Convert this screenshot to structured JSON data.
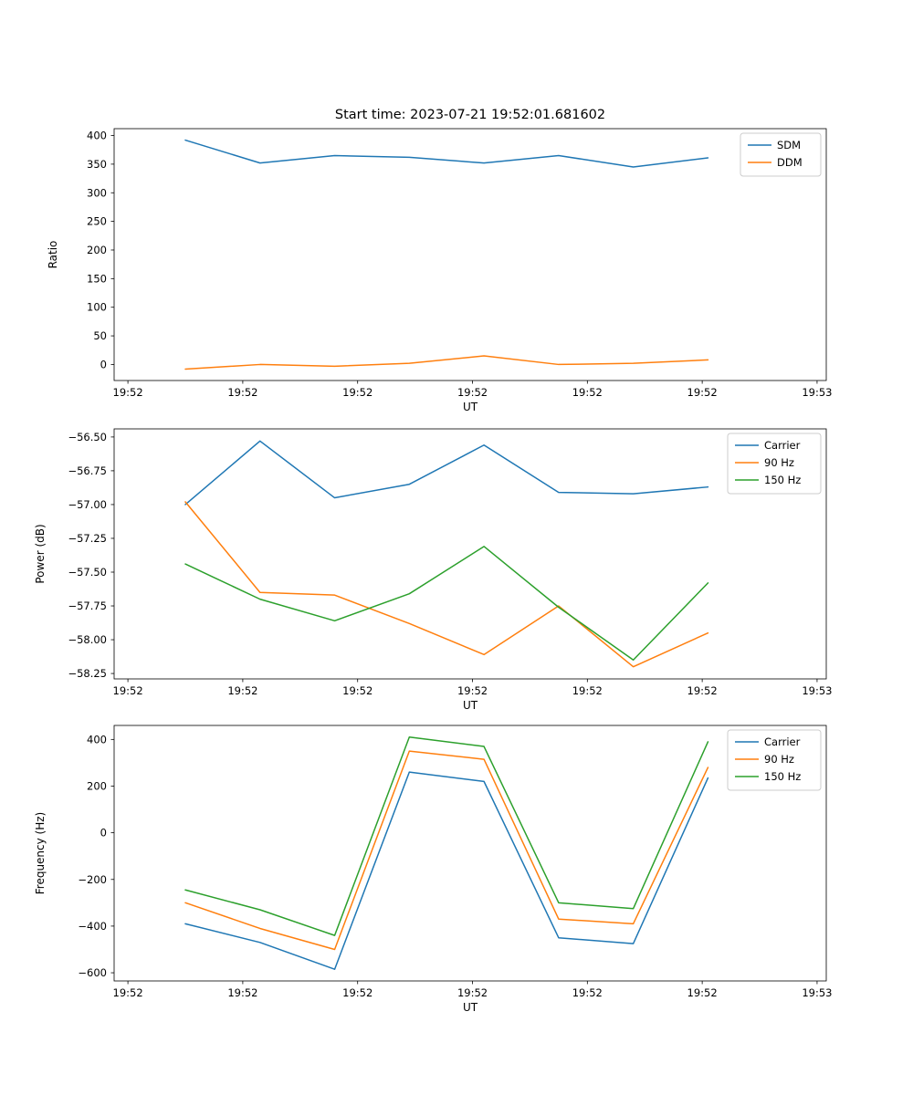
{
  "figure": {
    "title": "Start time: 2023-07-21 19:52:01.681602",
    "background": "#ffffff",
    "palette": {
      "blue": "#1f77b4",
      "orange": "#ff7f0e",
      "green": "#2ca02c"
    }
  },
  "chart_data": [
    {
      "type": "line",
      "title": "Start time: 2023-07-21 19:52:01.681602",
      "xlabel": "UT",
      "ylabel": "Ratio",
      "x": [
        5,
        11.5,
        18,
        24.5,
        31,
        37.5,
        44,
        50.5
      ],
      "xlim": [
        -1.2,
        60.8
      ],
      "xticks": [
        0,
        10,
        20,
        30,
        40,
        50,
        60
      ],
      "xtick_labels": [
        "19:52",
        "19:52",
        "19:52",
        "19:52",
        "19:52",
        "19:52",
        "19:53"
      ],
      "ylim": [
        -28,
        412
      ],
      "yticks": [
        0,
        50,
        100,
        150,
        200,
        250,
        300,
        350,
        400
      ],
      "ytick_labels": [
        "0",
        "50",
        "100",
        "150",
        "200",
        "250",
        "300",
        "350",
        "400"
      ],
      "grid": false,
      "legend_position": "upper right",
      "series": [
        {
          "name": "SDM",
          "color": "#1f77b4",
          "values": [
            392,
            352,
            365,
            362,
            352,
            365,
            345,
            361
          ]
        },
        {
          "name": "DDM",
          "color": "#ff7f0e",
          "values": [
            -8,
            0,
            -3,
            2,
            15,
            0,
            2,
            8
          ]
        }
      ]
    },
    {
      "type": "line",
      "title": "",
      "xlabel": "UT",
      "ylabel": "Power (dB)",
      "x": [
        5,
        11.5,
        18,
        24.5,
        31,
        37.5,
        44,
        50.5
      ],
      "xlim": [
        -1.2,
        60.8
      ],
      "xticks": [
        0,
        10,
        20,
        30,
        40,
        50,
        60
      ],
      "xtick_labels": [
        "19:52",
        "19:52",
        "19:52",
        "19:52",
        "19:52",
        "19:52",
        "19:53"
      ],
      "ylim": [
        -58.29,
        -56.44
      ],
      "yticks": [
        -56.5,
        -56.75,
        -57.0,
        -57.25,
        -57.5,
        -57.75,
        -58.0,
        -58.25
      ],
      "ytick_labels": [
        "−56.50",
        "−56.75",
        "−57.00",
        "−57.25",
        "−57.50",
        "−57.75",
        "−58.00",
        "−58.25"
      ],
      "grid": false,
      "legend_position": "upper right",
      "series": [
        {
          "name": "Carrier",
          "color": "#1f77b4",
          "values": [
            -57.0,
            -56.53,
            -56.95,
            -56.85,
            -56.56,
            -56.91,
            -56.92,
            -56.87
          ]
        },
        {
          "name": "90 Hz",
          "color": "#ff7f0e",
          "values": [
            -56.98,
            -57.65,
            -57.67,
            -57.88,
            -58.11,
            -57.75,
            -58.2,
            -57.95
          ]
        },
        {
          "name": "150 Hz",
          "color": "#2ca02c",
          "values": [
            -57.44,
            -57.7,
            -57.86,
            -57.66,
            -57.31,
            -57.76,
            -58.15,
            -57.58
          ]
        }
      ]
    },
    {
      "type": "line",
      "title": "",
      "xlabel": "UT",
      "ylabel": "Frequency (Hz)",
      "x": [
        5,
        11.5,
        18,
        24.5,
        31,
        37.5,
        44,
        50.5
      ],
      "xlim": [
        -1.2,
        60.8
      ],
      "xticks": [
        0,
        10,
        20,
        30,
        40,
        50,
        60
      ],
      "xtick_labels": [
        "19:52",
        "19:52",
        "19:52",
        "19:52",
        "19:52",
        "19:52",
        "19:53"
      ],
      "ylim": [
        -635,
        460
      ],
      "yticks": [
        -600,
        -400,
        -200,
        0,
        200,
        400
      ],
      "ytick_labels": [
        "−600",
        "−400",
        "−200",
        "0",
        "200",
        "400"
      ],
      "grid": false,
      "legend_position": "upper right",
      "series": [
        {
          "name": "Carrier",
          "color": "#1f77b4",
          "values": [
            -390,
            -470,
            -585,
            260,
            220,
            -450,
            -475,
            235
          ]
        },
        {
          "name": "90 Hz",
          "color": "#ff7f0e",
          "values": [
            -300,
            -410,
            -500,
            350,
            315,
            -370,
            -390,
            280
          ]
        },
        {
          "name": "150 Hz",
          "color": "#2ca02c",
          "values": [
            -245,
            -330,
            -440,
            410,
            370,
            -300,
            -325,
            390
          ]
        }
      ]
    }
  ]
}
